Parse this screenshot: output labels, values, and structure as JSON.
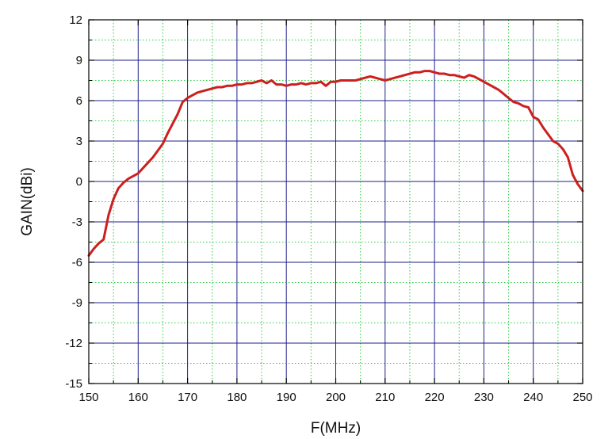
{
  "chart_data": {
    "type": "line",
    "title": "",
    "xlabel": "F(MHz)",
    "ylabel": "GAIN(dBi)",
    "xlim": [
      150,
      250
    ],
    "ylim": [
      -15,
      12
    ],
    "x_ticks": [
      150,
      160,
      170,
      180,
      190,
      200,
      210,
      220,
      230,
      240,
      250
    ],
    "y_ticks": [
      -15,
      -12,
      -9,
      -6,
      -3,
      0,
      3,
      6,
      9,
      12
    ],
    "x_minor_ticks": [
      155,
      165,
      175,
      185,
      195,
      205,
      215,
      225,
      235,
      245
    ],
    "y_minor_ticks": [
      -13.5,
      -10.5,
      -7.5,
      -4.5,
      -1.5,
      1.5,
      4.5,
      7.5,
      10.5
    ],
    "grid": true,
    "colors": {
      "major_grid": "#1f1f8a",
      "minor_grid": "#2ecc40",
      "series": "#cc1f1f",
      "axis": "#000000"
    },
    "series": [
      {
        "x": [
          150,
          151,
          152,
          153,
          154,
          155,
          156,
          157,
          158,
          159,
          160,
          161,
          162,
          163,
          164,
          165,
          166,
          167,
          168,
          169,
          170,
          171,
          172,
          173,
          174,
          175,
          176,
          177,
          178,
          179,
          180,
          181,
          182,
          183,
          184,
          185,
          186,
          187,
          188,
          189,
          190,
          191,
          192,
          193,
          194,
          195,
          196,
          197,
          198,
          199,
          200,
          201,
          202,
          203,
          204,
          205,
          206,
          207,
          208,
          209,
          210,
          211,
          212,
          213,
          214,
          215,
          216,
          217,
          218,
          219,
          220,
          221,
          222,
          223,
          224,
          225,
          226,
          227,
          228,
          229,
          230,
          231,
          232,
          233,
          234,
          235,
          236,
          237,
          238,
          239,
          240,
          241,
          242,
          243,
          244,
          245,
          246,
          247,
          248,
          249,
          250
        ],
        "values": [
          -5.5,
          -5.0,
          -4.6,
          -4.3,
          -2.5,
          -1.3,
          -0.5,
          -0.1,
          0.2,
          0.4,
          0.6,
          1.0,
          1.4,
          1.8,
          2.3,
          2.8,
          3.6,
          4.3,
          5.0,
          5.9,
          6.2,
          6.4,
          6.6,
          6.7,
          6.8,
          6.9,
          7.0,
          7.0,
          7.1,
          7.1,
          7.2,
          7.2,
          7.3,
          7.3,
          7.4,
          7.5,
          7.3,
          7.5,
          7.2,
          7.2,
          7.1,
          7.2,
          7.2,
          7.3,
          7.2,
          7.3,
          7.3,
          7.4,
          7.1,
          7.4,
          7.4,
          7.5,
          7.5,
          7.5,
          7.5,
          7.6,
          7.7,
          7.8,
          7.7,
          7.6,
          7.5,
          7.6,
          7.7,
          7.8,
          7.9,
          8.0,
          8.1,
          8.1,
          8.2,
          8.2,
          8.1,
          8.0,
          8.0,
          7.9,
          7.9,
          7.8,
          7.7,
          7.9,
          7.8,
          7.6,
          7.4,
          7.2,
          7.0,
          6.8,
          6.5,
          6.2,
          5.9,
          5.8,
          5.6,
          5.5,
          4.8,
          4.6,
          4.0,
          3.5,
          3.0,
          2.8,
          2.4,
          1.8,
          0.5,
          -0.2,
          -0.7
        ]
      }
    ]
  }
}
